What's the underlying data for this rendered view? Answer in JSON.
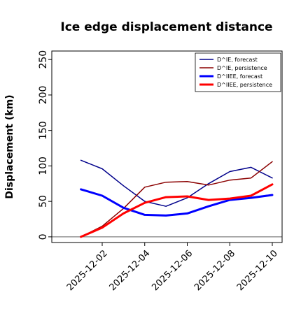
{
  "chart_data": {
    "type": "line",
    "title": "Ice edge displacement distance",
    "xlabel": "",
    "ylabel": "Displacement (km)",
    "x": [
      "2025-12-01",
      "2025-12-02",
      "2025-12-03",
      "2025-12-04",
      "2025-12-05",
      "2025-12-06",
      "2025-12-07",
      "2025-12-08",
      "2025-12-09",
      "2025-12-10"
    ],
    "xticks": [
      "2025-12-02",
      "2025-12-04",
      "2025-12-06",
      "2025-12-08",
      "2025-12-10"
    ],
    "xtick_colors": [
      "#2a9d2a",
      "#000000",
      "#000000",
      "#000000",
      "#000000"
    ],
    "ylim": [
      -8,
      262
    ],
    "yticks": [
      0,
      50,
      100,
      150,
      200,
      250
    ],
    "grid": false,
    "legend_position": "top-right",
    "series": [
      {
        "name": "D^IE, forecast",
        "color": "#00008b",
        "width": 1.5,
        "values": [
          108,
          96,
          72,
          50,
          43,
          55,
          75,
          92,
          98,
          83
        ]
      },
      {
        "name": "D^IE, persistence",
        "color": "#8b0000",
        "width": 1.5,
        "values": [
          0,
          15,
          40,
          70,
          77,
          78,
          73,
          80,
          83,
          106
        ]
      },
      {
        "name": "D^IIEE, forecast",
        "color": "#0000ff",
        "width": 3,
        "values": [
          67,
          58,
          41,
          31,
          30,
          33,
          43,
          52,
          55,
          59
        ]
      },
      {
        "name": "D^IIEE, persistence",
        "color": "#ff0000",
        "width": 3,
        "values": [
          0,
          13,
          33,
          48,
          56,
          57,
          52,
          54,
          58,
          74
        ]
      }
    ],
    "baseline": {
      "value": 0,
      "color": "#808080"
    }
  }
}
